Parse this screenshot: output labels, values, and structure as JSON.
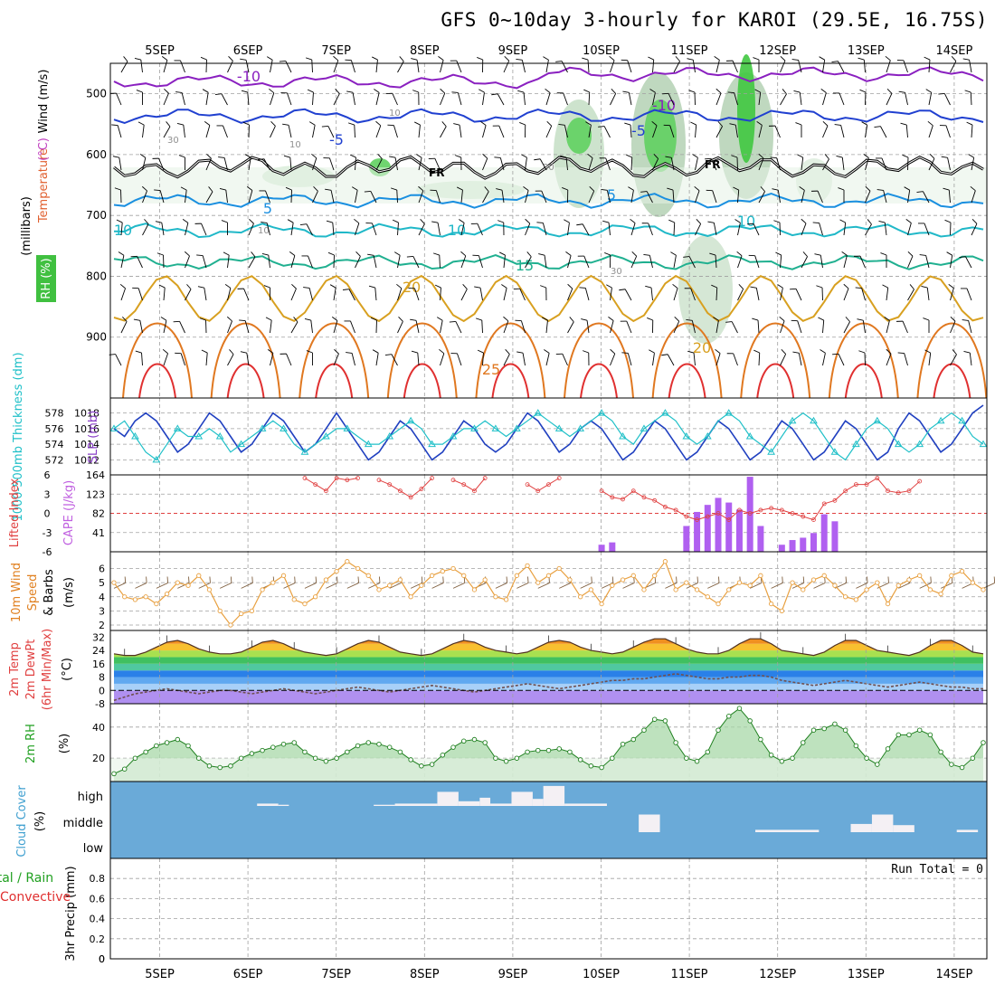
{
  "title": "GFS 0~10day 3-hourly for KAROI (29.5E, 16.75S)",
  "chart_data": {
    "type": "meteogram",
    "x_axis": {
      "labels": [
        "5SEP",
        "6SEP",
        "7SEP",
        "8SEP",
        "9SEP",
        "10SEP",
        "11SEP",
        "12SEP",
        "13SEP",
        "14SEP"
      ]
    },
    "panels": [
      {
        "id": "upper_air",
        "ylabel": "(millibars)",
        "left_labels": [
          {
            "text": "Wind (m/s)",
            "color": "#000000"
          },
          {
            "text": "Temperature",
            "color": "#e06030"
          },
          {
            "text": "(°C)",
            "color": "#c040c0"
          },
          {
            "text": "RH (%)",
            "color": "#ffffff",
            "bg": "#40c040"
          }
        ],
        "yticks": [
          500,
          600,
          700,
          800,
          900
        ],
        "ylim": [
          1000,
          450
        ],
        "fr_label": "FR",
        "isotherms": [
          {
            "label": "-10",
            "color": "#8a20c0"
          },
          {
            "label": "-5",
            "color": "#2040d0"
          },
          {
            "label": "5",
            "color": "#1a8fe0"
          },
          {
            "label": "10",
            "color": "#20b8c8"
          },
          {
            "label": "15",
            "color": "#20b090"
          },
          {
            "label": "20",
            "color": "#d8a020"
          },
          {
            "label": "25",
            "color": "#e07820"
          }
        ],
        "rh_contour_labels": [
          "10",
          "30"
        ]
      },
      {
        "id": "slp_thickness",
        "left_label": "1000-500mb Thickness (dm)",
        "right_label": "SLP (mb)",
        "left_ticks": [
          572,
          574,
          576,
          578
        ],
        "right_ticks": [
          1012,
          1014,
          1016,
          1018
        ],
        "series": [
          {
            "name": "SLP",
            "color": "#2040c0",
            "values": [
              1016,
              1015,
              1017,
              1018,
              1017,
              1015,
              1013,
              1014,
              1016,
              1018,
              1017,
              1015,
              1013,
              1014,
              1016,
              1018,
              1017,
              1015,
              1013,
              1014,
              1016,
              1018,
              1016,
              1014,
              1012,
              1013,
              1015,
              1017,
              1016,
              1014,
              1012,
              1013,
              1015,
              1017,
              1016,
              1014,
              1013,
              1014,
              1016,
              1018,
              1017,
              1015,
              1013,
              1014,
              1016,
              1017,
              1016,
              1014,
              1012,
              1013,
              1015,
              1017,
              1016,
              1014,
              1012,
              1013,
              1015,
              1017,
              1016,
              1014,
              1012,
              1013,
              1015,
              1017,
              1016,
              1014,
              1012,
              1013,
              1015,
              1017,
              1016,
              1014,
              1012,
              1013,
              1016,
              1018,
              1017,
              1015,
              1013,
              1014,
              1016,
              1018,
              1019
            ]
          },
          {
            "name": "Thickness",
            "color": "#20c0c8",
            "values": [
              576,
              577,
              575,
              573,
              572,
              574,
              576,
              575,
              575,
              576,
              575,
              573,
              574,
              575,
              576,
              577,
              576,
              574,
              573,
              574,
              575,
              576,
              576,
              575,
              574,
              574,
              575,
              576,
              577,
              576,
              574,
              574,
              575,
              576,
              576,
              577,
              576,
              575,
              576,
              577,
              578,
              577,
              576,
              575,
              576,
              577,
              578,
              577,
              575,
              574,
              576,
              577,
              578,
              577,
              575,
              574,
              575,
              577,
              578,
              577,
              575,
              574,
              573,
              575,
              577,
              578,
              577,
              575,
              573,
              572,
              574,
              576,
              577,
              576,
              574,
              573,
              574,
              576,
              577,
              578,
              577,
              575,
              574
            ]
          }
        ]
      },
      {
        "id": "lifted_cape",
        "left_label": "Lifted Index",
        "right_label": "CAPE (J/kg)",
        "left_ticks": [
          6,
          3,
          0,
          -3,
          -6
        ],
        "right_ticks": [
          41,
          82,
          123,
          164
        ],
        "cape": [
          0,
          0,
          0,
          0,
          0,
          0,
          0,
          0,
          0,
          0,
          0,
          0,
          0,
          0,
          0,
          0,
          0,
          0,
          0,
          0,
          0,
          0,
          0,
          0,
          0,
          0,
          0,
          0,
          0,
          0,
          0,
          0,
          0,
          0,
          0,
          0,
          0,
          0,
          0,
          0,
          0,
          0,
          0,
          0,
          0,
          0,
          15,
          20,
          0,
          0,
          0,
          0,
          0,
          0,
          55,
          85,
          100,
          115,
          105,
          90,
          160,
          55,
          0,
          15,
          25,
          30,
          40,
          80,
          65,
          0,
          0,
          0,
          0,
          0,
          0,
          0,
          0,
          0,
          0,
          0,
          0,
          0,
          0
        ],
        "lifted_index": [
          null,
          null,
          null,
          null,
          null,
          null,
          null,
          null,
          null,
          null,
          null,
          null,
          null,
          null,
          null,
          null,
          null,
          null,
          5.5,
          4.5,
          3.5,
          5.5,
          5.2,
          5.5,
          null,
          5.2,
          4.5,
          3.5,
          2.5,
          3.8,
          5.5,
          null,
          5.2,
          4.5,
          3.5,
          5.5,
          null,
          null,
          null,
          4.5,
          3.5,
          4.5,
          5.5,
          null,
          null,
          null,
          3.5,
          2.5,
          2.2,
          3.5,
          2.5,
          2.0,
          1.0,
          0.5,
          -0.5,
          -1.0,
          -0.5,
          0.0,
          -1.0,
          0.5,
          0.0,
          0.5,
          0.8,
          0.5,
          0.0,
          -0.5,
          -1.0,
          1.5,
          2.0,
          3.5,
          4.5,
          4.5,
          5.5,
          3.5,
          3.2,
          3.5,
          5.0,
          null,
          null,
          null,
          null,
          null,
          null
        ]
      },
      {
        "id": "wind10m",
        "left_label": "10m Wind Speed & Barbs",
        "units": "(m/s)",
        "yticks": [
          2,
          3,
          4,
          5,
          6
        ],
        "ylim": [
          2,
          7
        ],
        "values": [
          5.0,
          4.0,
          3.8,
          4.0,
          3.5,
          4.2,
          5.0,
          4.8,
          5.5,
          4.5,
          3.0,
          2.0,
          2.8,
          3.0,
          4.5,
          5.0,
          5.5,
          3.8,
          3.5,
          4.0,
          5.2,
          5.8,
          6.5,
          6.0,
          5.5,
          4.5,
          4.8,
          5.2,
          4.0,
          4.8,
          5.5,
          5.8,
          6.0,
          5.5,
          4.5,
          5.2,
          4.0,
          3.8,
          5.5,
          6.2,
          5.0,
          5.5,
          6.0,
          5.2,
          4.0,
          4.5,
          3.5,
          4.8,
          5.2,
          5.5,
          4.5,
          5.5,
          6.5,
          4.5,
          5.0,
          4.5,
          4.0,
          3.5,
          4.5,
          5.0,
          4.8,
          5.5,
          3.5,
          3.0,
          5.0,
          4.5,
          5.2,
          5.5,
          4.8,
          4.0,
          3.8,
          4.5,
          5.0,
          3.5,
          4.8,
          5.2,
          5.5,
          4.5,
          4.2,
          5.5,
          5.8,
          5.0,
          4.5
        ]
      },
      {
        "id": "temp",
        "left_label": "2m Temp 2m DewPt (6hr Min/Max)",
        "units": "(°C)",
        "yticks": [
          32,
          24,
          16,
          8,
          0,
          -8
        ],
        "ylim": [
          -8,
          36
        ],
        "temp": [
          22,
          21,
          21,
          23,
          26,
          29,
          30,
          28,
          25,
          23,
          22,
          22,
          23,
          26,
          29,
          30,
          28,
          25,
          23,
          22,
          21,
          22,
          25,
          28,
          30,
          29,
          26,
          23,
          22,
          21,
          22,
          25,
          28,
          30,
          29,
          26,
          24,
          23,
          22,
          23,
          26,
          29,
          30,
          29,
          26,
          24,
          23,
          22,
          23,
          26,
          29,
          31,
          31,
          28,
          25,
          23,
          22,
          22,
          24,
          28,
          31,
          31,
          28,
          24,
          23,
          22,
          21,
          23,
          27,
          30,
          30,
          27,
          24,
          23,
          22,
          21,
          23,
          27,
          30,
          30,
          27,
          23,
          22
        ],
        "dewpoint": [
          -6,
          -4,
          -2,
          -1,
          0,
          1,
          0,
          -1,
          -2,
          -1,
          0,
          0,
          -1,
          -2,
          -1,
          0,
          1,
          0,
          -1,
          -2,
          -1,
          0,
          1,
          2,
          1,
          0,
          -1,
          0,
          1,
          2,
          3,
          2,
          1,
          0,
          -1,
          0,
          1,
          2,
          3,
          4,
          3,
          2,
          1,
          2,
          3,
          4,
          5,
          6,
          6,
          7,
          7,
          8,
          9,
          10,
          9,
          8,
          7,
          7,
          8,
          8,
          9,
          9,
          8,
          6,
          5,
          4,
          3,
          4,
          5,
          6,
          5,
          4,
          3,
          2,
          3,
          4,
          5,
          4,
          3,
          2,
          2,
          1,
          1
        ],
        "bands": [
          {
            "from": -8,
            "to": 0,
            "color": "#b090f0"
          },
          {
            "from": 0,
            "to": 4,
            "color": "#a8d0f8"
          },
          {
            "from": 4,
            "to": 8,
            "color": "#60a8f0"
          },
          {
            "from": 8,
            "to": 12,
            "color": "#2a80e8"
          },
          {
            "from": 12,
            "to": 16,
            "color": "#50c8a0"
          },
          {
            "from": 16,
            "to": 20,
            "color": "#40c060"
          },
          {
            "from": 20,
            "to": 24,
            "color": "#a8e050"
          },
          {
            "from": 24,
            "to": 28,
            "color": "#f8c030"
          },
          {
            "from": 28,
            "to": 32,
            "color": "#f09020"
          },
          {
            "from": 32,
            "to": 36,
            "color": "#d86010"
          }
        ]
      },
      {
        "id": "rh",
        "left_label": "2m RH",
        "units": "(%)",
        "yticks": [
          20,
          40
        ],
        "ylim": [
          5,
          55
        ],
        "values": [
          10,
          13,
          20,
          24,
          28,
          30,
          32,
          28,
          20,
          15,
          14,
          15,
          20,
          23,
          25,
          27,
          29,
          30,
          24,
          20,
          18,
          20,
          24,
          28,
          30,
          29,
          27,
          24,
          19,
          15,
          16,
          22,
          27,
          31,
          32,
          30,
          20,
          18,
          20,
          24,
          25,
          25,
          26,
          24,
          19,
          15,
          14,
          20,
          29,
          32,
          38,
          45,
          44,
          30,
          20,
          18,
          24,
          38,
          47,
          52,
          44,
          32,
          22,
          18,
          20,
          30,
          38,
          39,
          42,
          38,
          28,
          20,
          16,
          26,
          35,
          35,
          38,
          35,
          24,
          16,
          14,
          20,
          30
        ]
      },
      {
        "id": "cloud",
        "left_label": "Cloud Cover",
        "units": "(%)",
        "row_labels": [
          "high",
          "middle",
          "low"
        ],
        "bg_color": "#6aaad8",
        "blocks": [
          {
            "layer": "high",
            "start": 14,
            "end": 16,
            "value": 10
          },
          {
            "layer": "high",
            "start": 16,
            "end": 17,
            "value": 5
          },
          {
            "layer": "high",
            "start": 25,
            "end": 27,
            "value": 5
          },
          {
            "layer": "high",
            "start": 27,
            "end": 31,
            "value": 10
          },
          {
            "layer": "high",
            "start": 31,
            "end": 33,
            "value": 60
          },
          {
            "layer": "high",
            "start": 33,
            "end": 35,
            "value": 20
          },
          {
            "layer": "high",
            "start": 35,
            "end": 36,
            "value": 35
          },
          {
            "layer": "high",
            "start": 36,
            "end": 38,
            "value": 10
          },
          {
            "layer": "high",
            "start": 38,
            "end": 40,
            "value": 60
          },
          {
            "layer": "high",
            "start": 40,
            "end": 41,
            "value": 30
          },
          {
            "layer": "high",
            "start": 41,
            "end": 43,
            "value": 85
          },
          {
            "layer": "high",
            "start": 43,
            "end": 47,
            "value": 10
          },
          {
            "layer": "middle",
            "start": 50,
            "end": 52,
            "value": 75
          },
          {
            "layer": "middle",
            "start": 61,
            "end": 67,
            "value": 10
          },
          {
            "layer": "middle",
            "start": 70,
            "end": 72,
            "value": 35
          },
          {
            "layer": "middle",
            "start": 72,
            "end": 74,
            "value": 75
          },
          {
            "layer": "middle",
            "start": 74,
            "end": 76,
            "value": 30
          },
          {
            "layer": "middle",
            "start": 80,
            "end": 82,
            "value": 10
          }
        ]
      },
      {
        "id": "precip",
        "left_label": "3hr Precip (mm)",
        "right_legend": [
          "Total / Rain",
          "Convective"
        ],
        "yticks": [
          0,
          0.2,
          0.4,
          0.6,
          0.8
        ],
        "ylim": [
          0,
          1.0
        ],
        "values": [],
        "annotation": "Run Total = 0"
      }
    ]
  }
}
